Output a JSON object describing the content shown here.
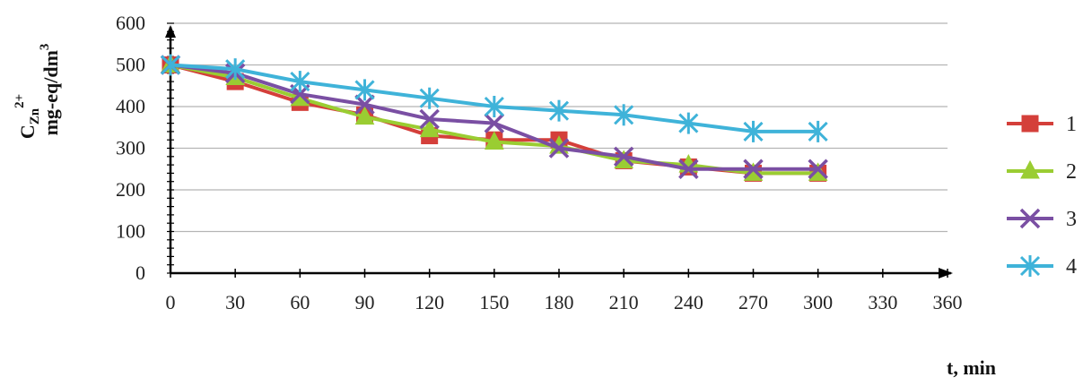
{
  "chart_data": {
    "type": "line",
    "title": "",
    "xlabel": "t, min",
    "ylabel": {
      "main": "C",
      "sub": "Zn",
      "sup": "2+",
      "unit_prefix": "mg-eq/dm",
      "unit_sup": "3"
    },
    "xlim": [
      0,
      360
    ],
    "ylim": [
      0,
      600
    ],
    "xticks": [
      0,
      30,
      60,
      90,
      120,
      150,
      180,
      210,
      240,
      270,
      300,
      330,
      360
    ],
    "yticks": [
      0,
      100,
      200,
      300,
      400,
      500,
      600
    ],
    "grid": "horizontal",
    "legend_position": "right",
    "x": [
      0,
      30,
      60,
      90,
      120,
      150,
      180,
      210,
      240,
      270,
      300
    ],
    "series": [
      {
        "name": "1",
        "color": "#d43f3a",
        "marker": "square",
        "values": [
          500,
          460,
          410,
          380,
          330,
          320,
          320,
          270,
          255,
          240,
          240
        ]
      },
      {
        "name": "2",
        "color": "#9acd32",
        "marker": "triangle",
        "values": [
          500,
          470,
          420,
          375,
          345,
          315,
          305,
          270,
          260,
          240,
          240
        ]
      },
      {
        "name": "3",
        "color": "#7a4fa3",
        "marker": "x",
        "values": [
          500,
          480,
          430,
          405,
          370,
          360,
          300,
          280,
          250,
          250,
          250
        ]
      },
      {
        "name": "4",
        "color": "#3fb3d9",
        "marker": "star",
        "values": [
          500,
          490,
          460,
          440,
          420,
          400,
          390,
          380,
          360,
          340,
          340
        ]
      }
    ]
  }
}
